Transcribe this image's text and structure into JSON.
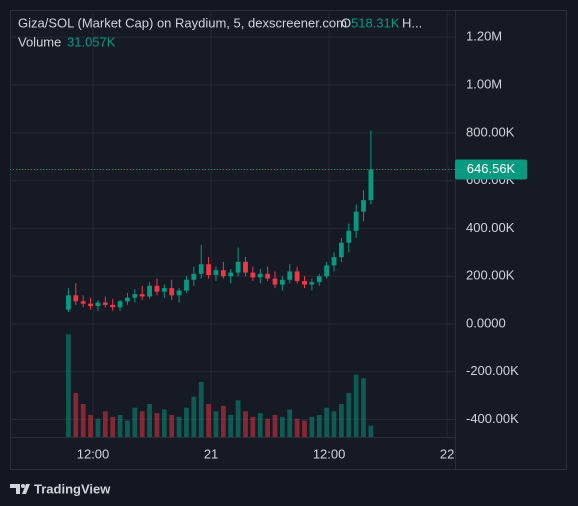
{
  "chart_data": {
    "type": "candlestick",
    "title": "Giza/SOL (Market Cap) on Raydium, 5, dexscreener.com",
    "open_label": "O",
    "open_value": "518.31K",
    "high_label": "H...",
    "volume_title": "Volume",
    "volume_value": "31.057K",
    "last_price_label": "646.56K",
    "footer": "TradingView",
    "up_color": "#089981",
    "down_color": "#f23645",
    "grid": true,
    "x": [
      9.5,
      10.25,
      11,
      11.75,
      12.5,
      13.25,
      14,
      14.75,
      15.5,
      16.25,
      17,
      17.75,
      18.5,
      19.25,
      20,
      20.75,
      21.5,
      22.25,
      23,
      23.75,
      24.5,
      25.25,
      26,
      26.75,
      27.5,
      28.25,
      29,
      29.75,
      30.5,
      31.25,
      32,
      32.75,
      33.5,
      34.25,
      35,
      35.75,
      36.5,
      37.25,
      38,
      38.75,
      39.5,
      40.25
    ],
    "open": [
      60000,
      120000,
      95000,
      85000,
      75000,
      90000,
      80000,
      70000,
      95000,
      110000,
      125000,
      115000,
      160000,
      135000,
      150000,
      120000,
      140000,
      185000,
      210000,
      250000,
      205000,
      225000,
      200000,
      215000,
      260000,
      215000,
      195000,
      210000,
      190000,
      165000,
      185000,
      220000,
      180000,
      165000,
      175000,
      200000,
      245000,
      280000,
      340000,
      390000,
      470000,
      518310
    ],
    "high": [
      150000,
      170000,
      120000,
      110000,
      100000,
      115000,
      105000,
      100000,
      130000,
      145000,
      160000,
      175000,
      190000,
      165000,
      185000,
      150000,
      200000,
      240000,
      330000,
      280000,
      240000,
      260000,
      230000,
      320000,
      280000,
      240000,
      230000,
      240000,
      220000,
      200000,
      250000,
      240000,
      200000,
      190000,
      210000,
      260000,
      300000,
      360000,
      420000,
      500000,
      560000,
      810000
    ],
    "low": [
      50000,
      80000,
      70000,
      60000,
      55000,
      70000,
      55000,
      55000,
      80000,
      90000,
      100000,
      105000,
      120000,
      110000,
      100000,
      90000,
      130000,
      160000,
      190000,
      190000,
      180000,
      190000,
      170000,
      200000,
      200000,
      180000,
      170000,
      180000,
      150000,
      140000,
      170000,
      170000,
      150000,
      140000,
      160000,
      190000,
      220000,
      260000,
      300000,
      360000,
      430000,
      500000
    ],
    "close": [
      120000,
      95000,
      85000,
      75000,
      90000,
      80000,
      70000,
      95000,
      110000,
      125000,
      115000,
      160000,
      135000,
      150000,
      120000,
      140000,
      185000,
      210000,
      250000,
      205000,
      225000,
      200000,
      215000,
      260000,
      215000,
      195000,
      210000,
      190000,
      165000,
      185000,
      220000,
      180000,
      165000,
      175000,
      200000,
      245000,
      280000,
      340000,
      390000,
      470000,
      518310,
      646560
    ],
    "volume": [
      280000,
      120000,
      90000,
      60000,
      50000,
      70000,
      55000,
      60000,
      45000,
      80000,
      70000,
      90000,
      65000,
      75000,
      60000,
      55000,
      80000,
      110000,
      150000,
      90000,
      70000,
      85000,
      60000,
      100000,
      70000,
      55000,
      65000,
      50000,
      60000,
      55000,
      75000,
      50000,
      45000,
      55000,
      60000,
      80000,
      70000,
      90000,
      120000,
      170000,
      160000,
      31057
    ],
    "last_price": 646560,
    "xlim": [
      3.56,
      48.8
    ],
    "xticks": [
      {
        "value": 12,
        "label": "12:00"
      },
      {
        "value": 24,
        "label": "21"
      },
      {
        "value": 36,
        "label": "12:00"
      },
      {
        "value": 48,
        "label": "22"
      }
    ],
    "ylim": [
      -473000,
      1314000
    ],
    "yticks": [
      {
        "value": -400000,
        "label": "-400.00K"
      },
      {
        "value": -200000,
        "label": "-200.00K"
      },
      {
        "value": 0,
        "label": "0.0000"
      },
      {
        "value": 200000,
        "label": "200.00K"
      },
      {
        "value": 400000,
        "label": "400.00K"
      },
      {
        "value": 600000,
        "label": "600.00K"
      },
      {
        "value": 800000,
        "label": "800.00K"
      },
      {
        "value": 1000000,
        "label": "1.00M"
      },
      {
        "value": 1200000,
        "label": "1.20M"
      }
    ],
    "volume_lim": [
      0,
      300000
    ]
  }
}
